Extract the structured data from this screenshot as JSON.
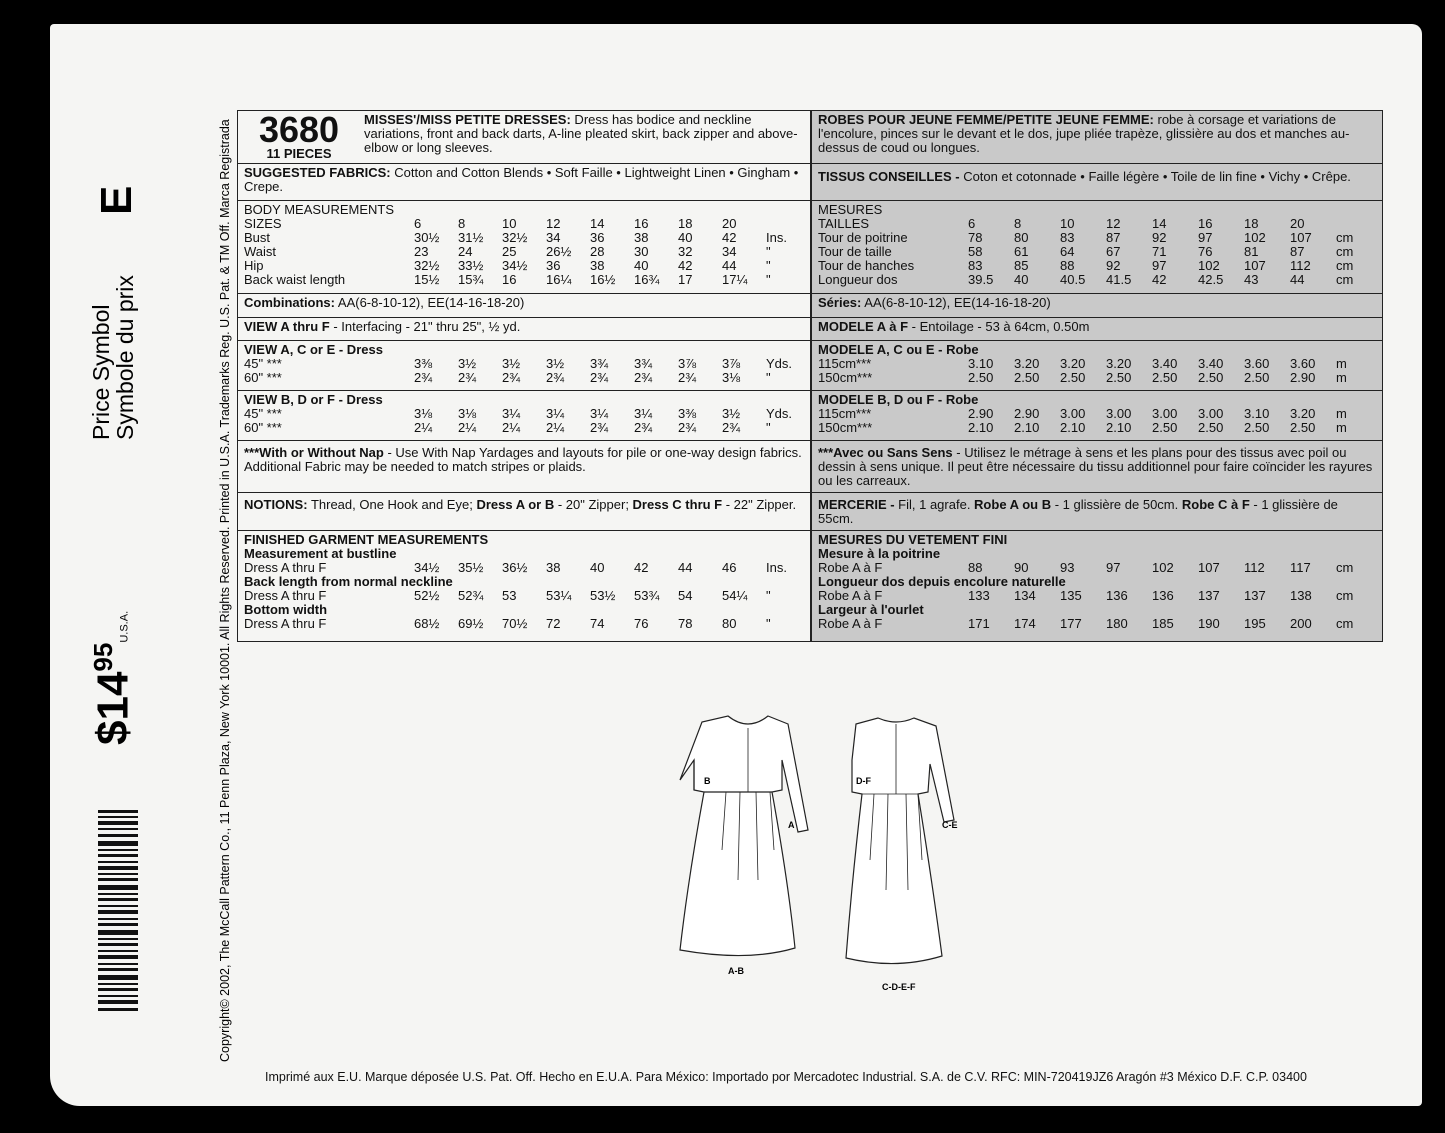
{
  "side": {
    "letter": "E",
    "price_symbol": "Price Symbol",
    "symbole": "Symbole du prix",
    "price": "$14",
    "cents": "95",
    "country": "U.S.A.",
    "copyright": "Copyright© 2002, The McCall Pattern Co., 11 Penn Plaza, New York 10001. All Rights Reserved. Printed in U.S.A. Trademarks Reg. U.S. Pat. & TM Off. Marca Registrada"
  },
  "english": {
    "number": "3680",
    "pieces": "11 PIECES",
    "title": [
      "MISSES'/MISS PETITE DRESSES:",
      " Dress has bodice and neckline variations, front and back darts, A-line pleated skirt, back zipper and above-elbow or long sleeves."
    ],
    "fabrics": [
      "SUGGESTED FABRICS:",
      " Cotton and Cotton Blends • Soft Faille • Lightweight Linen • Gingham • Crepe."
    ],
    "body": {
      "heading": "BODY MEASUREMENTS",
      "rows": [
        {
          "label": "SIZES",
          "values": [
            "6",
            "8",
            "10",
            "12",
            "14",
            "16",
            "18",
            "20"
          ]
        },
        {
          "label": "Bust",
          "values": [
            "30½",
            "31½",
            "32½",
            "34",
            "36",
            "38",
            "40",
            "42"
          ],
          "unit": "Ins."
        },
        {
          "label": "Waist",
          "values": [
            "23",
            "24",
            "25",
            "26½",
            "28",
            "30",
            "32",
            "34"
          ],
          "unit": "\""
        },
        {
          "label": "Hip",
          "values": [
            "32½",
            "33½",
            "34½",
            "36",
            "38",
            "40",
            "42",
            "44"
          ],
          "unit": "\""
        },
        {
          "label": "Back waist length",
          "values": [
            "15½",
            "15¾",
            "16",
            "16¼",
            "16½",
            "16¾",
            "17",
            "17¼"
          ],
          "unit": "\""
        }
      ]
    },
    "combinations": [
      "Combinations:",
      " AA(6-8-10-12), EE(14-16-18-20)"
    ],
    "interfacing": [
      "VIEW A thru F",
      " - Interfacing - 21\" thru 25\", ½ yd."
    ],
    "view_ace": {
      "heading": "VIEW A, C or E - Dress",
      "rows": [
        {
          "label": "45\" ***",
          "values": [
            "3⅜",
            "3½",
            "3½",
            "3½",
            "3¾",
            "3¾",
            "3⅞",
            "3⅞"
          ],
          "unit": "Yds."
        },
        {
          "label": "60\" ***",
          "values": [
            "2¾",
            "2¾",
            "2¾",
            "2¾",
            "2¾",
            "2¾",
            "2¾",
            "3⅛"
          ],
          "unit": "\""
        }
      ]
    },
    "view_bdf": {
      "heading": "VIEW B, D or F - Dress",
      "rows": [
        {
          "label": "45\" ***",
          "values": [
            "3⅛",
            "3⅛",
            "3¼",
            "3¼",
            "3¼",
            "3¼",
            "3⅜",
            "3½"
          ],
          "unit": "Yds."
        },
        {
          "label": "60\" ***",
          "values": [
            "2¼",
            "2¼",
            "2¼",
            "2¼",
            "2¾",
            "2¾",
            "2¾",
            "2¾"
          ],
          "unit": "\""
        }
      ]
    },
    "nap": [
      "***With or Without Nap",
      " - Use With Nap Yardages and layouts for pile or one-way design fabrics. Additional Fabric may be needed to match stripes or plaids."
    ],
    "notions": [
      "NOTIONS:",
      " Thread, One Hook and Eye; ",
      "Dress A or B",
      " - 20\" Zipper; ",
      "Dress C thru F",
      " - 22\" Zipper."
    ],
    "finished": {
      "heading": "FINISHED GARMENT MEASUREMENTS",
      "groups": [
        {
          "subheading": "Measurement at bustline",
          "label": "Dress A thru F",
          "values": [
            "34½",
            "35½",
            "36½",
            "38",
            "40",
            "42",
            "44",
            "46"
          ],
          "unit": "Ins."
        },
        {
          "subheading": "Back length from normal neckline",
          "label": "Dress A thru F",
          "values": [
            "52½",
            "52¾",
            "53",
            "53¼",
            "53½",
            "53¾",
            "54",
            "54¼"
          ],
          "unit": "\""
        },
        {
          "subheading": "Bottom width",
          "label": "Dress A thru F",
          "values": [
            "68½",
            "69½",
            "70½",
            "72",
            "74",
            "76",
            "78",
            "80"
          ],
          "unit": "\""
        }
      ]
    }
  },
  "french": {
    "title": [
      "ROBES POUR JEUNE FEMME/PETITE JEUNE FEMME:",
      " robe à corsage et variations de l'encolure, pinces sur le devant et le dos, jupe pliée trapèze, glissière au dos et manches au-dessus de coud ou longues."
    ],
    "fabrics": [
      "TISSUS CONSEILLES -",
      " Coton et cotonnade • Faille légère • Toile de lin fine • Vichy • Crêpe."
    ],
    "body": {
      "heading": "MESURES",
      "rows": [
        {
          "label": "TAILLES",
          "values": [
            "6",
            "8",
            "10",
            "12",
            "14",
            "16",
            "18",
            "20"
          ]
        },
        {
          "label": "Tour de poitrine",
          "values": [
            "78",
            "80",
            "83",
            "87",
            "92",
            "97",
            "102",
            "107"
          ],
          "unit": "cm"
        },
        {
          "label": "Tour de taille",
          "values": [
            "58",
            "61",
            "64",
            "67",
            "71",
            "76",
            "81",
            "87"
          ],
          "unit": "cm"
        },
        {
          "label": "Tour de hanches",
          "values": [
            "83",
            "85",
            "88",
            "92",
            "97",
            "102",
            "107",
            "112"
          ],
          "unit": "cm"
        },
        {
          "label": "Longueur dos",
          "values": [
            "39.5",
            "40",
            "40.5",
            "41.5",
            "42",
            "42.5",
            "43",
            "44"
          ],
          "unit": "cm"
        }
      ]
    },
    "series": [
      "Séries:",
      " AA(6-8-10-12), EE(14-16-18-20)"
    ],
    "interfacing": [
      "MODELE A à F",
      " - Entoilage - 53 à 64cm, 0.50m"
    ],
    "view_ace": {
      "heading": "MODELE A, C ou E - Robe",
      "rows": [
        {
          "label": "115cm***",
          "values": [
            "3.10",
            "3.20",
            "3.20",
            "3.20",
            "3.40",
            "3.40",
            "3.60",
            "3.60"
          ],
          "unit": "m"
        },
        {
          "label": "150cm***",
          "values": [
            "2.50",
            "2.50",
            "2.50",
            "2.50",
            "2.50",
            "2.50",
            "2.50",
            "2.90"
          ],
          "unit": "m"
        }
      ]
    },
    "view_bdf": {
      "heading": "MODELE B, D ou F - Robe",
      "rows": [
        {
          "label": "115cm***",
          "values": [
            "2.90",
            "2.90",
            "3.00",
            "3.00",
            "3.00",
            "3.00",
            "3.10",
            "3.20"
          ],
          "unit": "m"
        },
        {
          "label": "150cm***",
          "values": [
            "2.10",
            "2.10",
            "2.10",
            "2.10",
            "2.50",
            "2.50",
            "2.50",
            "2.50"
          ],
          "unit": "m"
        }
      ]
    },
    "nap": [
      "***Avec ou Sans Sens",
      " - Utilisez le métrage à sens et les plans pour des tissus avec poil ou dessin à sens unique. Il peut être nécessaire du tissu additionnel pour faire coïncider les rayures ou les carreaux."
    ],
    "mercerie": [
      "MERCERIE -",
      " Fil, 1 agrafe. ",
      "Robe A ou B",
      " - 1 glissière de 50cm. ",
      "Robe C à F",
      " - 1 glissière de 55cm."
    ],
    "finished": {
      "heading": "MESURES DU VETEMENT FINI",
      "groups": [
        {
          "subheading": "Mesure à la poitrine",
          "label": "Robe A à F",
          "values": [
            "88",
            "90",
            "93",
            "97",
            "102",
            "107",
            "112",
            "117"
          ],
          "unit": "cm"
        },
        {
          "subheading": "Longueur dos depuis encolure naturelle",
          "label": "Robe A à F",
          "values": [
            "133",
            "134",
            "135",
            "136",
            "136",
            "137",
            "137",
            "138"
          ],
          "unit": "cm"
        },
        {
          "subheading": "Largeur à l'ourlet",
          "label": "Robe A à F",
          "values": [
            "171",
            "174",
            "177",
            "180",
            "185",
            "190",
            "195",
            "200"
          ],
          "unit": "cm"
        }
      ]
    }
  },
  "drawings": {
    "front": [
      "B",
      "A",
      "A-B"
    ],
    "back": [
      "D-F",
      "C-E",
      "C-D-E-F"
    ]
  },
  "footer": "Imprimé aux E.U. Marque déposée U.S. Pat. Off. Hecho en E.U.A. Para México: Importado por Mercadotec Industrial. S.A. de C.V. RFC: MIN-720419JZ6 Aragón #3 México D.F. C.P. 03400"
}
